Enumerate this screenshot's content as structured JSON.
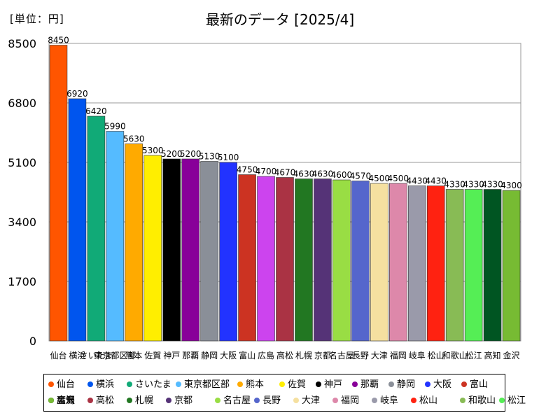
{
  "unit_label": "[単位：円]",
  "chart_data": {
    "type": "bar",
    "title": "最新のデータ [2025/4]",
    "xlabel": "",
    "ylabel": "",
    "ylim": [
      0,
      8500
    ],
    "yticks": [
      0,
      1700,
      3400,
      5100,
      6800,
      8500
    ],
    "categories": [
      "仙台",
      "横浜",
      "さいたま",
      "東京都区部",
      "熊本",
      "佐賀",
      "神戸",
      "那覇",
      "静岡",
      "大阪",
      "富山",
      "広島",
      "高松",
      "札幌",
      "京都",
      "名古屋",
      "長野",
      "大津",
      "福岡",
      "岐阜",
      "松山",
      "和歌山",
      "松江",
      "高知",
      "金沢"
    ],
    "axis_labels": [
      "仙台",
      "横浜",
      "さいたま",
      "東京都区部",
      "熊本",
      "佐賀",
      "神戸",
      "那覇",
      "静岡",
      "大阪",
      "富山",
      "広島",
      "高松",
      "札幌",
      "京都",
      "名古屋",
      "長野",
      "大津",
      "福岡",
      "岐阜",
      "松山",
      "和歌山",
      "松江",
      "高知",
      "金沢"
    ],
    "values": [
      8450,
      6920,
      6420,
      5990,
      5630,
      5300,
      5200,
      5200,
      5130,
      5100,
      4750,
      4700,
      4670,
      4630,
      4630,
      4600,
      4570,
      4500,
      4500,
      4430,
      4430,
      4330,
      4330,
      4330,
      4300
    ],
    "value_labels": [
      "8450",
      "6920",
      "6420",
      "5990",
      "5630",
      "5300",
      "5200",
      "5200",
      "5130",
      "5100",
      "4750",
      "4700",
      "4670",
      "4630",
      "4630",
      "4600",
      "4570",
      "4500",
      "4500",
      "4430",
      "4430",
      "4330",
      "4330",
      "4330",
      "4300"
    ],
    "colors": [
      "#ff5500",
      "#0055ee",
      "#11aa77",
      "#55bbff",
      "#ffaa00",
      "#ffee00",
      "#000000",
      "#880099",
      "#8a8f98",
      "#2233ff",
      "#cc3322",
      "#cc44ee",
      "#aa3344",
      "#227722",
      "#553377",
      "#99dd44",
      "#5566cc",
      "#f5e0a0",
      "#dd88aa",
      "#9a9aaa",
      "#ff2211",
      "#88bb55",
      "#55ee55",
      "#005522",
      "#77bb33"
    ],
    "legend": [
      "仙台",
      "横浜",
      "さいたま",
      "東京都区部",
      "熊本",
      "佐賀",
      "神戸",
      "那覇",
      "静岡",
      "大阪",
      "富山",
      "広島",
      "高松",
      "札幌",
      "京都",
      "名古屋",
      "長野",
      "大津",
      "福岡",
      "岐阜",
      "松山",
      "和歌山",
      "松江",
      "高知",
      "金沢"
    ],
    "grid": true,
    "legend_position": "bottom"
  }
}
